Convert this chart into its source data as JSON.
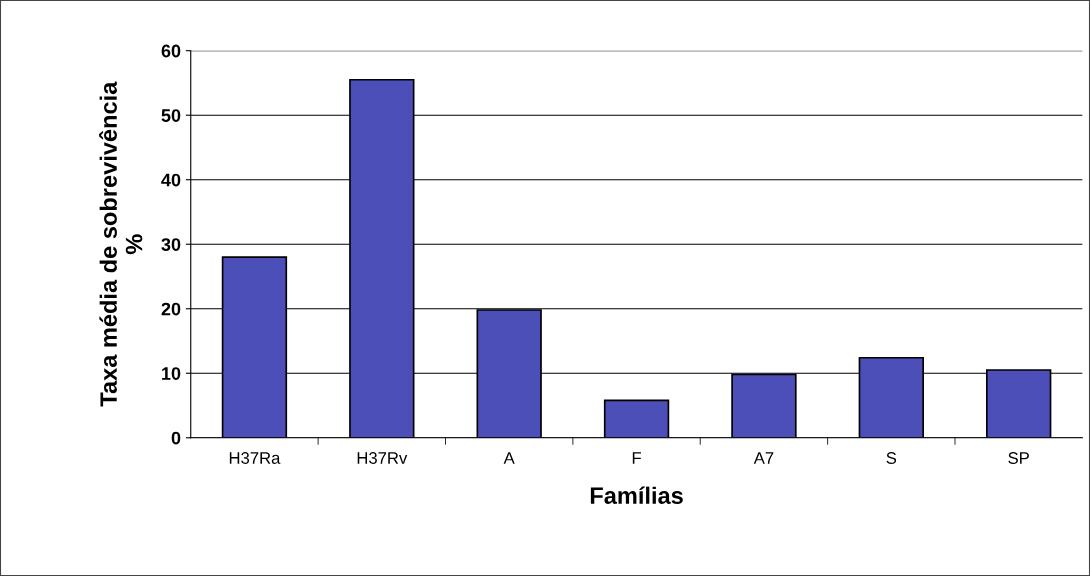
{
  "chart_data": {
    "type": "bar",
    "xlabel": "Famílias",
    "ylabel": "Taxa média de sobrevivência\n%",
    "categories": [
      "H37Ra",
      "H37Rv",
      "A",
      "F",
      "A7",
      "S",
      "SP"
    ],
    "values": [
      28,
      55.5,
      19.8,
      5.8,
      9.8,
      12.4,
      10.5
    ],
    "color": "#4d4fb8",
    "ylim": [
      0,
      60
    ],
    "yticks": [
      0,
      10,
      20,
      30,
      40,
      50,
      60
    ],
    "grid": "y",
    "legend": false
  }
}
